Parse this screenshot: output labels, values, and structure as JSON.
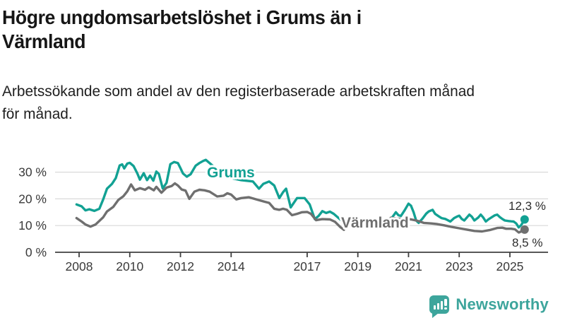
{
  "header": {
    "title_lines": [
      "Högre ungdomsarbetslöshet i Grums än i",
      "Värmland"
    ],
    "subtitle_lines": [
      "Arbetssökande som andel av den registerbaserade arbetskraften månad",
      "för månad."
    ]
  },
  "footer": {
    "brand": "Newsworthy",
    "brand_color": "#3da59c"
  },
  "colors": {
    "grums": "#12a193",
    "varmland": "#6f6f6f",
    "grid": "#d9d9d9",
    "axis": "#3f3f3f",
    "axis_text": "#3a3a3a",
    "value_label_text": "#2d2d2d"
  },
  "chart_data": {
    "type": "line",
    "title": "Högre ungdomsarbetslöshet i Grums än i Värmland",
    "subtitle": "Arbetssökande som andel av den registerbaserade arbetskraften månad för månad.",
    "unit": "%",
    "grid": true,
    "legend": "inline-labels",
    "x_axis": {
      "tick_years": [
        2008,
        2010,
        2012,
        2014,
        2017,
        2019,
        2021,
        2023,
        2025
      ],
      "tick_labels": [
        "2008",
        "2010",
        "2012",
        "2014",
        "2017",
        "2019",
        "2021",
        "2023",
        "2025"
      ],
      "range": [
        2007.0,
        2026.5
      ]
    },
    "y_axis": {
      "ticks": [
        0,
        10,
        20,
        30
      ],
      "tick_suffix": " %",
      "range": [
        0,
        36
      ]
    },
    "note": "lines have a visible data gap between mid-2018 and early 2020; final points marked with dots",
    "series": [
      {
        "key": "grums",
        "name": "Grums",
        "color": "#12a193",
        "end_label": "12,3 %",
        "end_value": 12.3,
        "segments": [
          [
            [
              2007.9,
              17.9
            ],
            [
              2008.1,
              17.2
            ],
            [
              2008.25,
              15.7
            ],
            [
              2008.4,
              16.1
            ],
            [
              2008.6,
              15.5
            ],
            [
              2008.8,
              16.3
            ],
            [
              2008.95,
              19.8
            ],
            [
              2009.1,
              23.8
            ],
            [
              2009.3,
              25.6
            ],
            [
              2009.45,
              27.8
            ],
            [
              2009.6,
              32.5
            ],
            [
              2009.7,
              32.9
            ],
            [
              2009.78,
              31.4
            ],
            [
              2009.9,
              33.2
            ],
            [
              2010.0,
              33.5
            ],
            [
              2010.15,
              32.3
            ],
            [
              2010.3,
              29.5
            ],
            [
              2010.4,
              27.2
            ],
            [
              2010.55,
              29.6
            ],
            [
              2010.68,
              27.0
            ],
            [
              2010.8,
              28.7
            ],
            [
              2010.93,
              26.8
            ],
            [
              2011.05,
              30.2
            ],
            [
              2011.15,
              29.3
            ],
            [
              2011.3,
              23.9
            ],
            [
              2011.45,
              26.0
            ],
            [
              2011.6,
              33.0
            ],
            [
              2011.75,
              33.8
            ],
            [
              2011.9,
              33.4
            ],
            [
              2012.0,
              31.5
            ],
            [
              2012.1,
              29.5
            ],
            [
              2012.25,
              28.3
            ],
            [
              2012.4,
              29.2
            ],
            [
              2012.6,
              32.4
            ],
            [
              2012.75,
              33.4
            ],
            [
              2012.9,
              34.2
            ],
            [
              2013.0,
              34.6
            ],
            [
              2013.2,
              33.0
            ],
            [
              2013.5,
              30.5
            ],
            [
              2013.9,
              28.0
            ],
            [
              2014.4,
              27.0
            ],
            [
              2014.86,
              26.5
            ],
            [
              2015.1,
              23.8
            ],
            [
              2015.27,
              25.6
            ],
            [
              2015.5,
              26.5
            ],
            [
              2015.7,
              25.0
            ],
            [
              2015.9,
              20.3
            ],
            [
              2016.05,
              22.5
            ],
            [
              2016.17,
              23.8
            ],
            [
              2016.35,
              16.8
            ],
            [
              2016.6,
              20.3
            ],
            [
              2016.9,
              20.3
            ],
            [
              2017.1,
              17.9
            ],
            [
              2017.3,
              12.4
            ],
            [
              2017.45,
              13.6
            ],
            [
              2017.6,
              15.4
            ],
            [
              2017.75,
              14.7
            ],
            [
              2017.9,
              15.2
            ],
            [
              2018.05,
              14.4
            ],
            [
              2018.35,
              11.9
            ]
          ],
          [
            [
              2020.3,
              12.4
            ],
            [
              2020.42,
              13.9
            ],
            [
              2020.5,
              15.0
            ],
            [
              2020.6,
              13.9
            ],
            [
              2020.7,
              13.6
            ],
            [
              2020.85,
              15.8
            ],
            [
              2021.0,
              18.2
            ],
            [
              2021.1,
              17.4
            ],
            [
              2021.2,
              15.0
            ],
            [
              2021.3,
              11.9
            ],
            [
              2021.4,
              11.0
            ],
            [
              2021.55,
              12.6
            ],
            [
              2021.7,
              14.5
            ],
            [
              2021.8,
              15.3
            ],
            [
              2021.95,
              15.9
            ],
            [
              2022.05,
              14.4
            ],
            [
              2022.2,
              13.4
            ],
            [
              2022.3,
              12.8
            ],
            [
              2022.45,
              12.5
            ],
            [
              2022.55,
              12.0
            ],
            [
              2022.65,
              11.5
            ],
            [
              2022.8,
              12.8
            ],
            [
              2022.9,
              13.3
            ],
            [
              2023.0,
              13.7
            ],
            [
              2023.1,
              12.5
            ],
            [
              2023.2,
              11.9
            ],
            [
              2023.3,
              13.0
            ],
            [
              2023.4,
              14.1
            ],
            [
              2023.5,
              13.3
            ],
            [
              2023.6,
              11.9
            ],
            [
              2023.75,
              13.0
            ],
            [
              2023.85,
              14.1
            ],
            [
              2023.95,
              13.0
            ],
            [
              2024.05,
              11.5
            ],
            [
              2024.15,
              12.3
            ],
            [
              2024.3,
              13.2
            ],
            [
              2024.4,
              13.8
            ],
            [
              2024.5,
              14.1
            ],
            [
              2024.6,
              13.2
            ],
            [
              2024.7,
              12.5
            ],
            [
              2024.8,
              11.9
            ],
            [
              2024.95,
              11.7
            ],
            [
              2025.05,
              11.6
            ],
            [
              2025.15,
              11.5
            ],
            [
              2025.25,
              10.8
            ],
            [
              2025.35,
              9.3
            ],
            [
              2025.45,
              10.2
            ],
            [
              2025.58,
              12.3
            ]
          ]
        ]
      },
      {
        "key": "varmland",
        "name": "Värmland",
        "color": "#6f6f6f",
        "end_label": "8,5 %",
        "end_value": 8.5,
        "segments": [
          [
            [
              2007.9,
              12.8
            ],
            [
              2008.1,
              11.5
            ],
            [
              2008.25,
              10.4
            ],
            [
              2008.45,
              9.6
            ],
            [
              2008.65,
              10.4
            ],
            [
              2008.95,
              13.1
            ],
            [
              2009.1,
              15.3
            ],
            [
              2009.35,
              17.0
            ],
            [
              2009.55,
              19.6
            ],
            [
              2009.75,
              21.0
            ],
            [
              2009.9,
              22.8
            ],
            [
              2010.05,
              25.4
            ],
            [
              2010.2,
              23.2
            ],
            [
              2010.4,
              24.0
            ],
            [
              2010.6,
              23.4
            ],
            [
              2010.75,
              24.3
            ],
            [
              2010.95,
              23.2
            ],
            [
              2011.05,
              24.5
            ],
            [
              2011.25,
              22.3
            ],
            [
              2011.45,
              24.2
            ],
            [
              2011.65,
              24.8
            ],
            [
              2011.78,
              25.8
            ],
            [
              2011.9,
              25.0
            ],
            [
              2012.05,
              23.5
            ],
            [
              2012.2,
              23.1
            ],
            [
              2012.35,
              20.0
            ],
            [
              2012.55,
              22.7
            ],
            [
              2012.75,
              23.4
            ],
            [
              2012.95,
              23.2
            ],
            [
              2013.15,
              22.7
            ],
            [
              2013.45,
              20.9
            ],
            [
              2013.7,
              21.2
            ],
            [
              2013.85,
              22.1
            ],
            [
              2014.0,
              21.6
            ],
            [
              2014.2,
              19.8
            ],
            [
              2014.4,
              20.3
            ],
            [
              2014.7,
              20.6
            ],
            [
              2015.0,
              19.8
            ],
            [
              2015.3,
              19.0
            ],
            [
              2015.5,
              18.5
            ],
            [
              2015.7,
              16.3
            ],
            [
              2015.9,
              15.9
            ],
            [
              2016.05,
              16.3
            ],
            [
              2016.2,
              15.9
            ],
            [
              2016.4,
              13.9
            ],
            [
              2016.6,
              14.4
            ],
            [
              2016.8,
              15.0
            ],
            [
              2017.0,
              15.1
            ],
            [
              2017.15,
              14.4
            ],
            [
              2017.35,
              12.0
            ],
            [
              2017.6,
              12.4
            ],
            [
              2017.9,
              12.3
            ],
            [
              2018.1,
              11.4
            ],
            [
              2018.3,
              9.5
            ],
            [
              2018.45,
              8.4
            ]
          ],
          [
            [
              2020.3,
              12.9
            ],
            [
              2020.6,
              12.6
            ],
            [
              2020.9,
              12.5
            ],
            [
              2021.1,
              12.3
            ],
            [
              2021.3,
              11.9
            ],
            [
              2021.45,
              11.5
            ],
            [
              2021.6,
              11.0
            ],
            [
              2021.9,
              10.8
            ],
            [
              2022.1,
              10.6
            ],
            [
              2022.4,
              10.1
            ],
            [
              2022.7,
              9.5
            ],
            [
              2023.0,
              9.0
            ],
            [
              2023.3,
              8.5
            ],
            [
              2023.6,
              8.0
            ],
            [
              2023.9,
              7.8
            ],
            [
              2024.2,
              8.3
            ],
            [
              2024.5,
              9.1
            ],
            [
              2024.7,
              9.2
            ],
            [
              2024.85,
              8.8
            ],
            [
              2025.05,
              8.8
            ],
            [
              2025.2,
              8.6
            ],
            [
              2025.35,
              7.4
            ],
            [
              2025.45,
              7.8
            ],
            [
              2025.58,
              8.5
            ]
          ]
        ]
      }
    ]
  }
}
